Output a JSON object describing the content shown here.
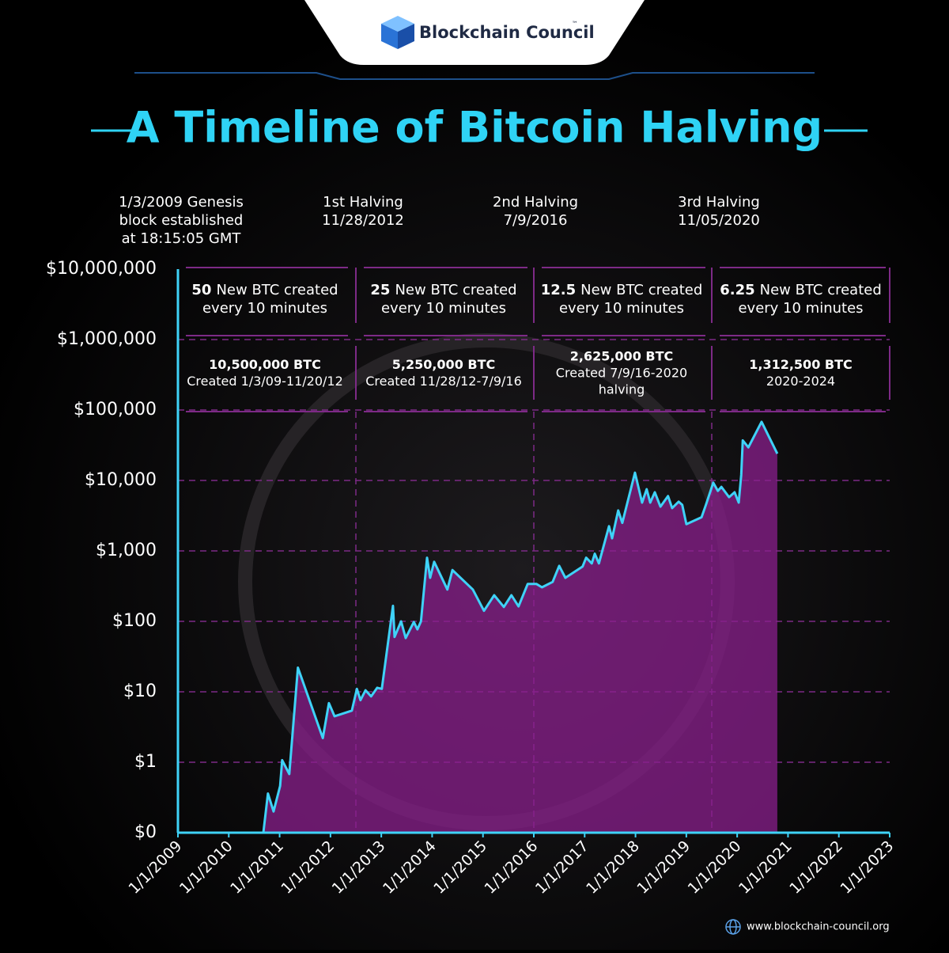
{
  "header": {
    "brand": "Blockchain Council",
    "trademark": "™"
  },
  "footer": {
    "url": "www.blockchain-council.org"
  },
  "chart_data": {
    "type": "line",
    "title": "A Timeline of Bitcoin Halving",
    "log_scale": true,
    "grid": true,
    "events": [
      {
        "lines": [
          "1/3/2009 Genesis",
          "block established",
          "at 18:15:05 GMT"
        ]
      },
      {
        "lines": [
          "1st Halving",
          "11/28/2012"
        ]
      },
      {
        "lines": [
          "2nd Halving",
          "7/9/2016"
        ]
      },
      {
        "lines": [
          "3rd Halving",
          "11/05/2020"
        ]
      }
    ],
    "eras": [
      {
        "reward": "50",
        "reward_lines": [
          "New BTC created",
          "every 10 minutes"
        ],
        "supply": "10,500,000 BTC",
        "period_lines": [
          "Created 1/3/09-11/20/12"
        ]
      },
      {
        "reward": "25",
        "reward_lines": [
          "New BTC created",
          "every 10 minutes"
        ],
        "supply": "5,250,000 BTC",
        "period_lines": [
          "Created 11/28/12-7/9/16"
        ]
      },
      {
        "reward": "12.5",
        "reward_lines": [
          "New BTC created",
          "every 10 minutes"
        ],
        "supply": "2,625,000 BTC",
        "period_lines": [
          "Created 7/9/16-2020",
          "halving"
        ]
      },
      {
        "reward": "6.25",
        "reward_lines": [
          "New BTC created",
          "every 10 minutes"
        ],
        "supply": "1,312,500 BTC",
        "period_lines": [
          "2020-2024"
        ]
      }
    ],
    "xlim": [
      2009,
      2023
    ],
    "xticks": [
      {
        "value": 2009,
        "label": "1/1/2009"
      },
      {
        "value": 2010,
        "label": "1/1/2010"
      },
      {
        "value": 2011,
        "label": "1/1/2011"
      },
      {
        "value": 2012,
        "label": "1/1/2012"
      },
      {
        "value": 2013,
        "label": "1/1/2013"
      },
      {
        "value": 2014,
        "label": "1/1/2014"
      },
      {
        "value": 2015,
        "label": "1/1/2015"
      },
      {
        "value": 2016,
        "label": "1/1/2016"
      },
      {
        "value": 2017,
        "label": "1/1/2017"
      },
      {
        "value": 2018,
        "label": "1/1/2018"
      },
      {
        "value": 2019,
        "label": "1/1/2019"
      },
      {
        "value": 2020,
        "label": "1/1/2020"
      },
      {
        "value": 2021,
        "label": "1/1/2021"
      },
      {
        "value": 2022,
        "label": "1/1/2022"
      },
      {
        "value": 2023,
        "label": "1/1/2023"
      }
    ],
    "ylim": [
      0.1,
      10000000
    ],
    "yticks": [
      {
        "value": 0.1,
        "label": "$0"
      },
      {
        "value": 1,
        "label": "$1"
      },
      {
        "value": 10,
        "label": "$10"
      },
      {
        "value": 100,
        "label": "$100"
      },
      {
        "value": 1000,
        "label": "$1,000"
      },
      {
        "value": 10000,
        "label": "$10,000"
      },
      {
        "value": 100000,
        "label": "$100,000"
      },
      {
        "value": 1000000,
        "label": "$1,000,000"
      },
      {
        "value": 10000000,
        "label": "$10,000,000"
      }
    ],
    "color": "#3fd2f7",
    "fill_color": "#8a1f8c",
    "x": [
      2010.68,
      2010.77,
      2010.88,
      2011.01,
      2011.05,
      2011.19,
      2011.36,
      2011.85,
      2011.97,
      2012.08,
      2012.42,
      2012.52,
      2012.59,
      2012.69,
      2012.8,
      2012.92,
      2013.01,
      2013.23,
      2013.26,
      2013.39,
      2013.48,
      2013.64,
      2013.71,
      2013.78,
      2013.9,
      2013.96,
      2014.04,
      2014.3,
      2014.4,
      2014.8,
      2015.02,
      2015.22,
      2015.41,
      2015.56,
      2015.7,
      2015.88,
      2016.05,
      2016.16,
      2016.37,
      2016.5,
      2016.62,
      2016.96,
      2017.03,
      2017.14,
      2017.2,
      2017.28,
      2017.48,
      2017.54,
      2017.66,
      2017.74,
      2017.99,
      2018.13,
      2018.22,
      2018.29,
      2018.38,
      2018.49,
      2018.64,
      2018.72,
      2018.85,
      2018.92,
      2019.0,
      2019.3,
      2019.39,
      2019.53,
      2019.62,
      2019.69,
      2019.84,
      2019.95,
      2020.03,
      2020.08,
      2020.11,
      2020.22,
      2020.48,
      2020.79
    ],
    "values": [
      0.1,
      0.36,
      0.2,
      0.46,
      1.07,
      0.68,
      22,
      2.2,
      6.9,
      4.5,
      5.4,
      11,
      7.6,
      10.5,
      8.6,
      11.4,
      11,
      166,
      60,
      100,
      58,
      98,
      77,
      100,
      800,
      415,
      700,
      283,
      535,
      283,
      141,
      235,
      160,
      235,
      163,
      340,
      340,
      304,
      363,
      613,
      415,
      600,
      800,
      665,
      910,
      665,
      2240,
      1510,
      3750,
      2500,
      12900,
      4850,
      7500,
      4850,
      6800,
      4250,
      6000,
      4050,
      5000,
      4500,
      2400,
      3000,
      4600,
      9300,
      7100,
      8100,
      5800,
      6800,
      4850,
      12000,
      37000,
      29500,
      68000,
      24000
    ]
  }
}
